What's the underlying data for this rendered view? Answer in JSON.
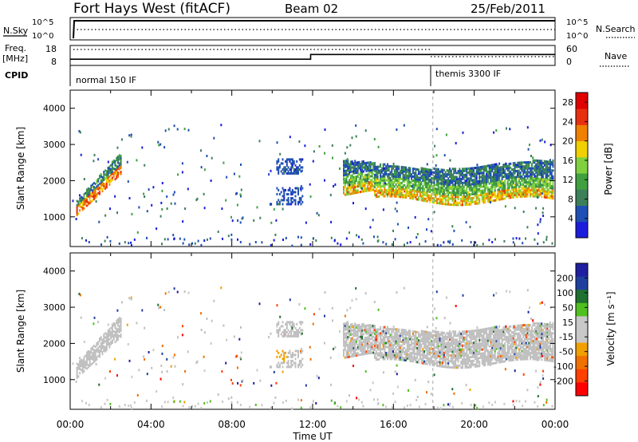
{
  "header": {
    "station": "Fort Hays West (fitACF)",
    "beam": "Beam 02",
    "date": "25/Feb/2011"
  },
  "aux_labels": {
    "nsky": "N.Sky",
    "nsearch": "N.Search",
    "freq": "Freq.",
    "freq_unit": "[MHz]",
    "nave": "Nave",
    "cpid": "CPID",
    "exp_a": "normal 150 IF",
    "exp_b": "themis 3300 IF",
    "nsky_ticks": [
      "10^5",
      "10^0"
    ],
    "nsearch_ticks": [
      "10^5",
      "10^0"
    ],
    "freq_ticks": [
      "18",
      "8"
    ],
    "nave_ticks": [
      "60",
      "0"
    ]
  },
  "colors": {
    "power_scale": [
      "#1c1cdc",
      "#1f4fb4",
      "#3c7f5a",
      "#40a040",
      "#80d040",
      "#f0d000",
      "#f08000",
      "#e83010",
      "#e00000"
    ],
    "velocity_scale": [
      "#1f1fa0",
      "#20409f",
      "#207030",
      "#50c020",
      "#c8c8c8",
      "#c8c8c8",
      "#f0a000",
      "#f07000",
      "#ff4000",
      "#ff0000"
    ],
    "ground_scatter": "#c0c0c0"
  },
  "chart_data": [
    {
      "type": "heatmap",
      "title": "Power",
      "xlabel": "Time UT",
      "ylabel": "Slant Range [km]",
      "x_ticks": [
        "00:00",
        "04:00",
        "08:00",
        "12:00",
        "16:00",
        "20:00",
        "00:00"
      ],
      "y_ticks": [
        1000,
        2000,
        3000,
        4000
      ],
      "ylim": [
        180,
        4500
      ],
      "xlim_hours": [
        0,
        24
      ],
      "colorbar_label": "Power [dB]",
      "colorbar_ticks": [
        4,
        8,
        12,
        16,
        20,
        24,
        28
      ],
      "colorbar_range": [
        0,
        30
      ],
      "scatter_regions": [
        {
          "t_start": 0.3,
          "t_end": 2.5,
          "range_low": [
            1050,
            2200
          ],
          "range_high": [
            1450,
            2800
          ],
          "peak_power": 24
        },
        {
          "t_start": 10.2,
          "t_end": 11.5,
          "range_low": 1300,
          "range_high": 2600,
          "peak_power": 6
        },
        {
          "t_start": 13.5,
          "t_end": 23.9,
          "range_low": 1450,
          "range_high": 2450,
          "peak_power": 20
        }
      ]
    },
    {
      "type": "heatmap",
      "title": "Velocity",
      "xlabel": "Time UT",
      "ylabel": "Slant Range [km]",
      "x_ticks": [
        "00:00",
        "04:00",
        "08:00",
        "12:00",
        "16:00",
        "20:00",
        "00:00"
      ],
      "y_ticks": [
        1000,
        2000,
        3000,
        4000
      ],
      "ylim": [
        180,
        4500
      ],
      "xlim_hours": [
        0,
        24
      ],
      "colorbar_label": "Velocity [m s⁻¹]",
      "colorbar_ticks": [
        200,
        100,
        50,
        15,
        -15,
        -50,
        -100,
        -200
      ],
      "colorbar_range": [
        -250,
        250
      ]
    }
  ],
  "aux_series": {
    "freq_mhz": [
      {
        "t": 0,
        "v": 11.2
      },
      {
        "t": 11.9,
        "v": 11.2
      },
      {
        "t": 11.9,
        "v": 14.5
      },
      {
        "t": 24,
        "v": 14.5
      }
    ],
    "exp_change_hour": 17.95
  }
}
